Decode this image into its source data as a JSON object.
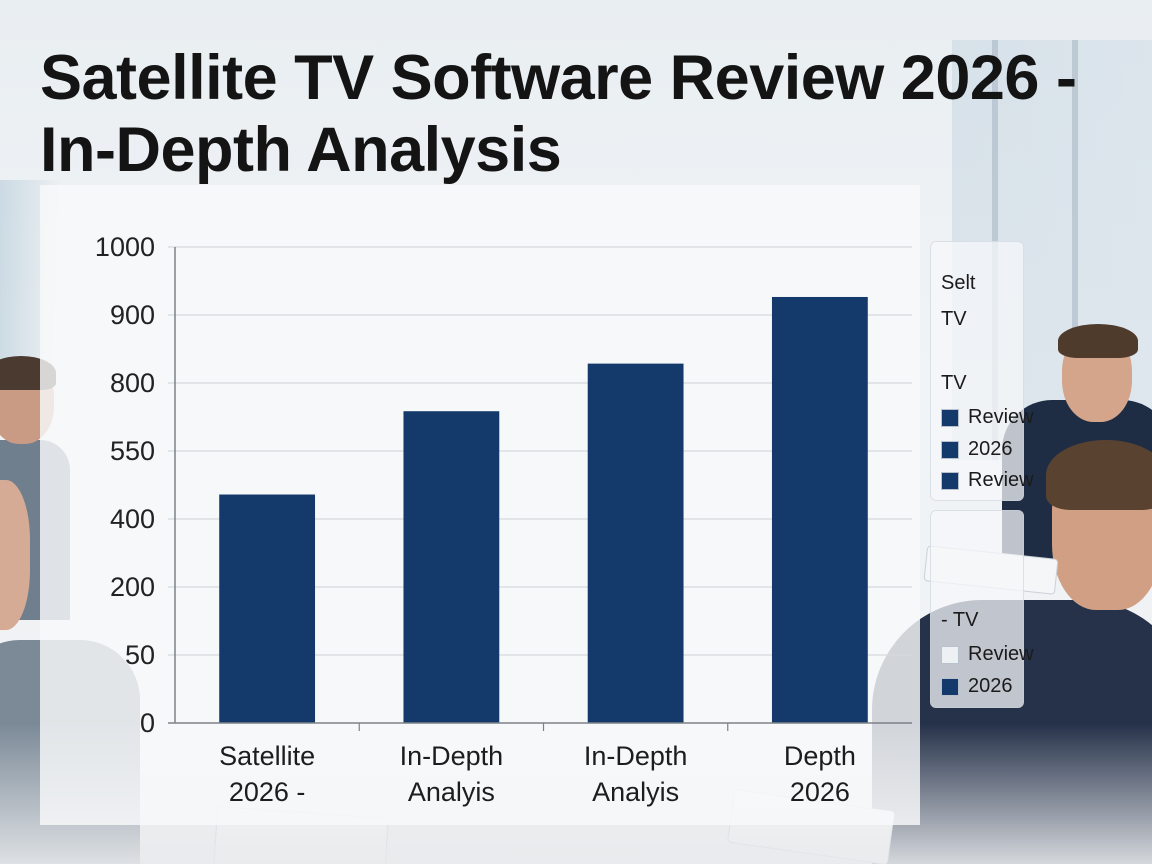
{
  "title": "Satellite TV Software Review 2026 - In-Depth Analysis",
  "colors": {
    "bar": "#133a6a",
    "grid": "#d5d9de",
    "axis": "#7d8288",
    "legend_light": "#eef1f4"
  },
  "legend": {
    "top": {
      "lines": [
        "Selt",
        "TV",
        "TV"
      ],
      "items": [
        {
          "label": "Review",
          "color": "#133a6a"
        },
        {
          "label": "2026",
          "color": "#133a6a"
        },
        {
          "label": "Review",
          "color": "#133a6a"
        }
      ]
    },
    "bottom": {
      "line": "- TV",
      "items": [
        {
          "label": "Review",
          "color": "#eef1f4"
        },
        {
          "label": "2026",
          "color": "#133a6a"
        }
      ]
    }
  },
  "chart_data": {
    "type": "bar",
    "categories": [
      [
        "Satellite",
        "2026 -"
      ],
      [
        "In-Depth",
        "Analyis"
      ],
      [
        "In-Depth",
        "Analyis"
      ],
      [
        "Depth",
        "2026"
      ]
    ],
    "values": [
      480,
      655,
      755,
      895
    ],
    "y_ticks": [
      "1000",
      "900",
      "800",
      "550",
      "400",
      "200",
      "50",
      "0"
    ],
    "ylim": [
      0,
      1000
    ],
    "grid": true,
    "legend_position": "right"
  }
}
